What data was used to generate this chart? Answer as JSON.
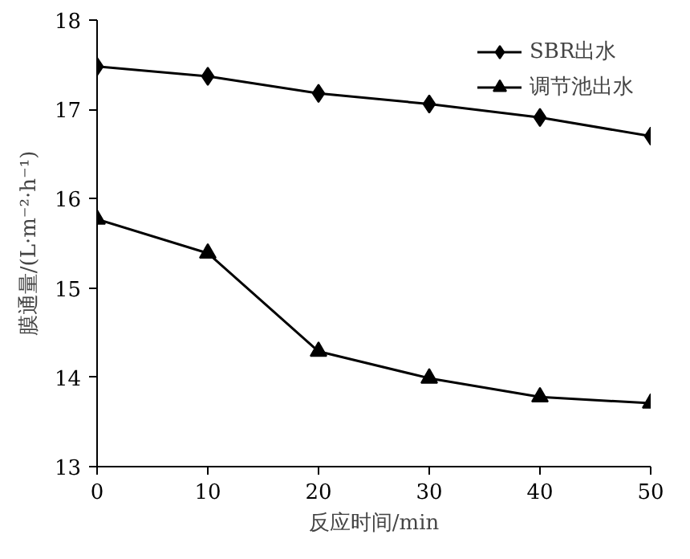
{
  "chart_data": {
    "type": "line",
    "xlabel": "反应时间/min",
    "ylabel": "膜通量/(L·m⁻²·h⁻¹)",
    "x": [
      0,
      10,
      20,
      30,
      40,
      50
    ],
    "series": [
      {
        "name": "SBR出水",
        "color": "#000000",
        "marker": "diamond",
        "values": [
          17.48,
          17.37,
          17.18,
          17.06,
          16.91,
          16.7
        ]
      },
      {
        "name": "调节池出水",
        "color": "#000000",
        "marker": "triangle",
        "values": [
          15.77,
          15.39,
          14.29,
          13.99,
          13.78,
          13.71
        ]
      }
    ],
    "xlim": [
      0,
      50
    ],
    "xticks": [
      0,
      10,
      20,
      30,
      40,
      50
    ],
    "ylim": [
      13,
      18
    ],
    "yticks": [
      13,
      14,
      15,
      16,
      17,
      18
    ],
    "grid": false,
    "legend": "top right",
    "line_style": "solid"
  }
}
